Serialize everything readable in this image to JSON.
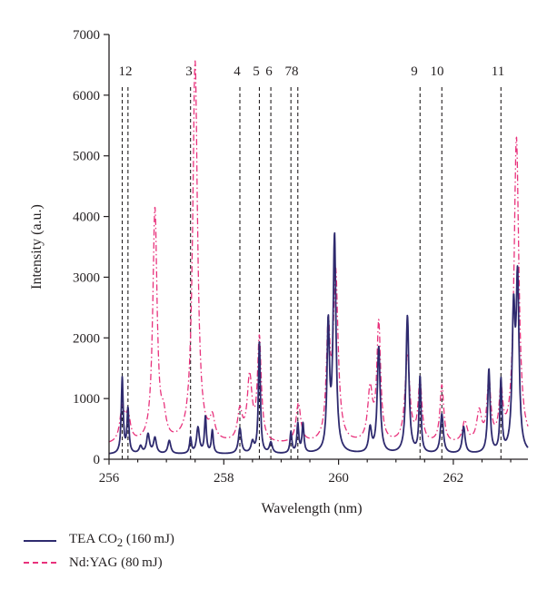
{
  "chart_data": {
    "type": "line",
    "xlabel": "Wavelength (nm)",
    "ylabel": "Intensity (a.u.)",
    "xlim": [
      256,
      263.3
    ],
    "ylim": [
      0,
      7000
    ],
    "xticks": [
      256,
      258,
      260,
      262
    ],
    "yticks": [
      0,
      1000,
      2000,
      3000,
      4000,
      5000,
      6000,
      7000
    ],
    "grid": false,
    "legend_position": "bottom-left",
    "colors": {
      "tea": "#2e2a6e",
      "yag": "#e8327c",
      "axis": "#231f20"
    },
    "peak_markers": [
      {
        "label": "1",
        "x": 256.23
      },
      {
        "label": "2",
        "x": 256.33
      },
      {
        "label": "3",
        "x": 257.42
      },
      {
        "label": "4",
        "x": 258.28
      },
      {
        "label": "5",
        "x": 258.62
      },
      {
        "label": "6",
        "x": 258.82
      },
      {
        "label": "7",
        "x": 259.17
      },
      {
        "label": "8",
        "x": 259.29
      },
      {
        "label": "9",
        "x": 261.42
      },
      {
        "label": "10",
        "x": 261.8
      },
      {
        "label": "11",
        "x": 262.83
      }
    ],
    "peak_label_text": [
      "12",
      "3",
      "4",
      "5",
      "6",
      "78",
      "9",
      "10",
      "11"
    ],
    "series": [
      {
        "name": "TEA CO₂ (160 mJ)",
        "legend_main": "TEA CO",
        "legend_sub": "2",
        "legend_tail": " (160 mJ)",
        "color": "#2e2a6e",
        "style": "solid",
        "baseline": 80,
        "peaks": [
          [
            256.23,
            1250,
            0.02
          ],
          [
            256.33,
            730,
            0.02
          ],
          [
            256.55,
            120,
            0.03
          ],
          [
            256.68,
            320,
            0.03
          ],
          [
            256.8,
            260,
            0.03
          ],
          [
            257.05,
            220,
            0.03
          ],
          [
            257.42,
            260,
            0.02
          ],
          [
            257.55,
            430,
            0.03
          ],
          [
            257.68,
            600,
            0.02
          ],
          [
            257.8,
            380,
            0.02
          ],
          [
            258.28,
            420,
            0.03
          ],
          [
            258.5,
            180,
            0.03
          ],
          [
            258.62,
            1850,
            0.02
          ],
          [
            258.82,
            180,
            0.03
          ],
          [
            259.17,
            350,
            0.02
          ],
          [
            259.29,
            480,
            0.02
          ],
          [
            259.38,
            480,
            0.02
          ],
          [
            259.82,
            2050,
            0.025
          ],
          [
            259.93,
            3550,
            0.03
          ],
          [
            260.55,
            400,
            0.03
          ],
          [
            260.7,
            1750,
            0.03
          ],
          [
            261.2,
            2270,
            0.03
          ],
          [
            261.42,
            1250,
            0.02
          ],
          [
            261.8,
            650,
            0.03
          ],
          [
            262.18,
            440,
            0.03
          ],
          [
            262.62,
            1380,
            0.025
          ],
          [
            262.83,
            1180,
            0.02
          ],
          [
            263.05,
            2200,
            0.03
          ],
          [
            263.12,
            2750,
            0.03
          ]
        ]
      },
      {
        "name": "Nd:YAG (80 mJ)",
        "legend_main": "Nd:YAG (80 mJ)",
        "color": "#e8327c",
        "style": "dashdot",
        "baseline": 230,
        "peaks": [
          [
            256.23,
            550,
            0.05
          ],
          [
            256.33,
            420,
            0.05
          ],
          [
            256.8,
            3850,
            0.045
          ],
          [
            256.95,
            350,
            0.05
          ],
          [
            257.5,
            6300,
            0.05
          ],
          [
            257.8,
            350,
            0.05
          ],
          [
            258.28,
            500,
            0.05
          ],
          [
            258.45,
            1050,
            0.05
          ],
          [
            258.62,
            1700,
            0.04
          ],
          [
            259.3,
            650,
            0.05
          ],
          [
            259.82,
            1750,
            0.04
          ],
          [
            259.95,
            2750,
            0.05
          ],
          [
            260.55,
            850,
            0.05
          ],
          [
            260.7,
            1950,
            0.04
          ],
          [
            261.2,
            1450,
            0.05
          ],
          [
            261.42,
            1000,
            0.04
          ],
          [
            261.8,
            950,
            0.04
          ],
          [
            262.2,
            350,
            0.05
          ],
          [
            262.45,
            500,
            0.05
          ],
          [
            262.62,
            1000,
            0.04
          ],
          [
            262.83,
            800,
            0.04
          ],
          [
            263.1,
            5050,
            0.05
          ]
        ]
      }
    ]
  }
}
